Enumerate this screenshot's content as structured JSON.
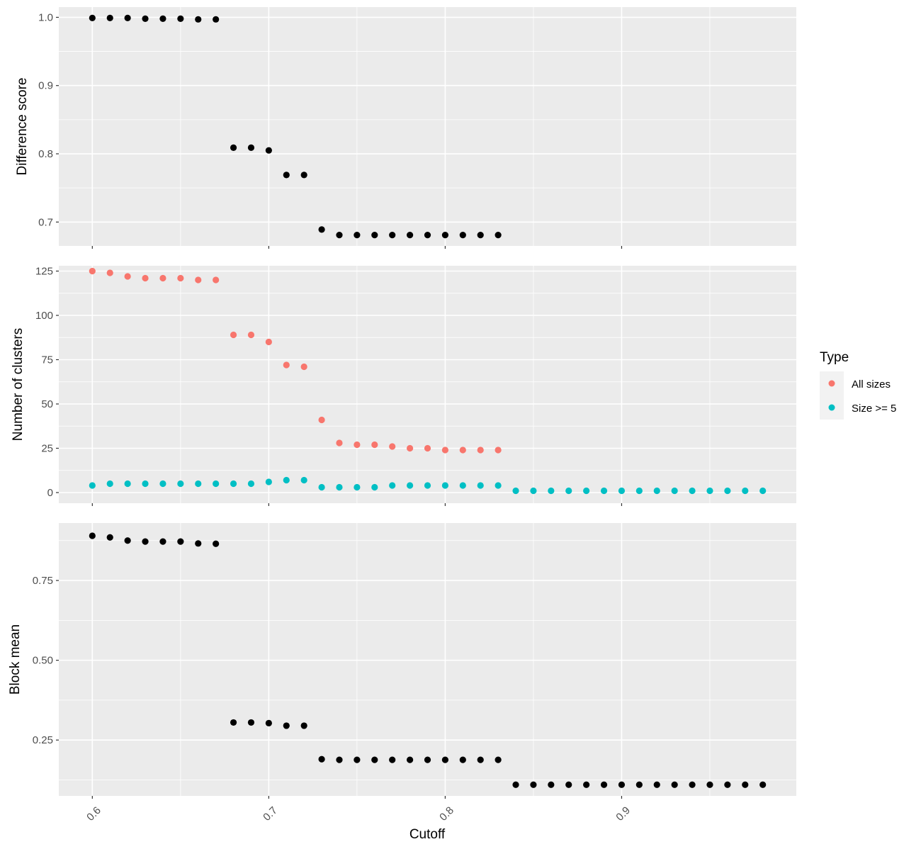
{
  "chart_data": [
    {
      "type": "scatter",
      "ylabel": "Difference score",
      "xlim": [
        0.581,
        0.999
      ],
      "ylim": [
        0.665,
        1.015
      ],
      "yticks": [
        0.7,
        0.8,
        0.9,
        1.0
      ],
      "ytick_labels": [
        "0.7",
        "0.8",
        "0.9",
        "1.0"
      ],
      "grid": true,
      "series": [
        {
          "color": "#000000",
          "x": [
            0.6,
            0.61,
            0.62,
            0.63,
            0.64,
            0.65,
            0.66,
            0.67,
            0.68,
            0.69,
            0.7,
            0.71,
            0.72,
            0.73,
            0.74,
            0.75,
            0.76,
            0.77,
            0.78,
            0.79,
            0.8,
            0.81,
            0.82,
            0.83
          ],
          "y": [
            0.999,
            0.999,
            0.999,
            0.998,
            0.998,
            0.998,
            0.997,
            0.997,
            0.809,
            0.809,
            0.805,
            0.769,
            0.769,
            0.689,
            0.681,
            0.681,
            0.681,
            0.681,
            0.681,
            0.681,
            0.681,
            0.681,
            0.681,
            0.681
          ]
        }
      ]
    },
    {
      "type": "scatter",
      "ylabel": "Number of clusters",
      "xlim": [
        0.581,
        0.999
      ],
      "ylim": [
        -6,
        128
      ],
      "yticks": [
        0,
        25,
        50,
        75,
        100,
        125
      ],
      "ytick_labels": [
        "0",
        "25",
        "50",
        "75",
        "100",
        "125"
      ],
      "grid": true,
      "legend": {
        "title": "Type",
        "placement": "right"
      },
      "series": [
        {
          "name": "All sizes",
          "color": "#F8766D",
          "x": [
            0.6,
            0.61,
            0.62,
            0.63,
            0.64,
            0.65,
            0.66,
            0.67,
            0.68,
            0.69,
            0.7,
            0.71,
            0.72,
            0.73,
            0.74,
            0.75,
            0.76,
            0.77,
            0.78,
            0.79,
            0.8,
            0.81,
            0.82,
            0.83
          ],
          "y": [
            125,
            124,
            122,
            121,
            121,
            121,
            120,
            120,
            89,
            89,
            85,
            72,
            71,
            41,
            28,
            27,
            27,
            26,
            25,
            25,
            24,
            24,
            24,
            24
          ]
        },
        {
          "name": "Size >= 5",
          "color": "#00BFC4",
          "x": [
            0.6,
            0.61,
            0.62,
            0.63,
            0.64,
            0.65,
            0.66,
            0.67,
            0.68,
            0.69,
            0.7,
            0.71,
            0.72,
            0.73,
            0.74,
            0.75,
            0.76,
            0.77,
            0.78,
            0.79,
            0.8,
            0.81,
            0.82,
            0.83,
            0.84,
            0.85,
            0.86,
            0.87,
            0.88,
            0.89,
            0.9,
            0.91,
            0.92,
            0.93,
            0.94,
            0.95,
            0.96,
            0.97,
            0.98
          ],
          "y": [
            4,
            5,
            5,
            5,
            5,
            5,
            5,
            5,
            5,
            5,
            6,
            7,
            7,
            3,
            3,
            3,
            3,
            4,
            4,
            4,
            4,
            4,
            4,
            4,
            1,
            1,
            1,
            1,
            1,
            1,
            1,
            1,
            1,
            1,
            1,
            1,
            1,
            1,
            1
          ]
        }
      ]
    },
    {
      "type": "scatter",
      "ylabel": "Block mean",
      "xlabel": "Cutoff",
      "xlim": [
        0.581,
        0.999
      ],
      "ylim": [
        0.075,
        0.93
      ],
      "yticks": [
        0.25,
        0.5,
        0.75
      ],
      "ytick_labels": [
        "0.25",
        "0.50",
        "0.75"
      ],
      "xticks": [
        0.6,
        0.7,
        0.8,
        0.9
      ],
      "xtick_labels": [
        "0.6",
        "0.7",
        "0.8",
        "0.9"
      ],
      "grid": true,
      "series": [
        {
          "color": "#000000",
          "x": [
            0.6,
            0.61,
            0.62,
            0.63,
            0.64,
            0.65,
            0.66,
            0.67,
            0.68,
            0.69,
            0.7,
            0.71,
            0.72,
            0.73,
            0.74,
            0.75,
            0.76,
            0.77,
            0.78,
            0.79,
            0.8,
            0.81,
            0.82,
            0.83,
            0.84,
            0.85,
            0.86,
            0.87,
            0.88,
            0.89,
            0.9,
            0.91,
            0.92,
            0.93,
            0.94,
            0.95,
            0.96,
            0.97,
            0.98
          ],
          "y": [
            0.89,
            0.885,
            0.875,
            0.872,
            0.872,
            0.872,
            0.866,
            0.865,
            0.305,
            0.305,
            0.303,
            0.295,
            0.295,
            0.19,
            0.188,
            0.188,
            0.188,
            0.188,
            0.188,
            0.188,
            0.188,
            0.188,
            0.188,
            0.188,
            0.11,
            0.11,
            0.11,
            0.11,
            0.11,
            0.11,
            0.11,
            0.11,
            0.11,
            0.11,
            0.11,
            0.11,
            0.11,
            0.11,
            0.11
          ]
        }
      ]
    }
  ]
}
